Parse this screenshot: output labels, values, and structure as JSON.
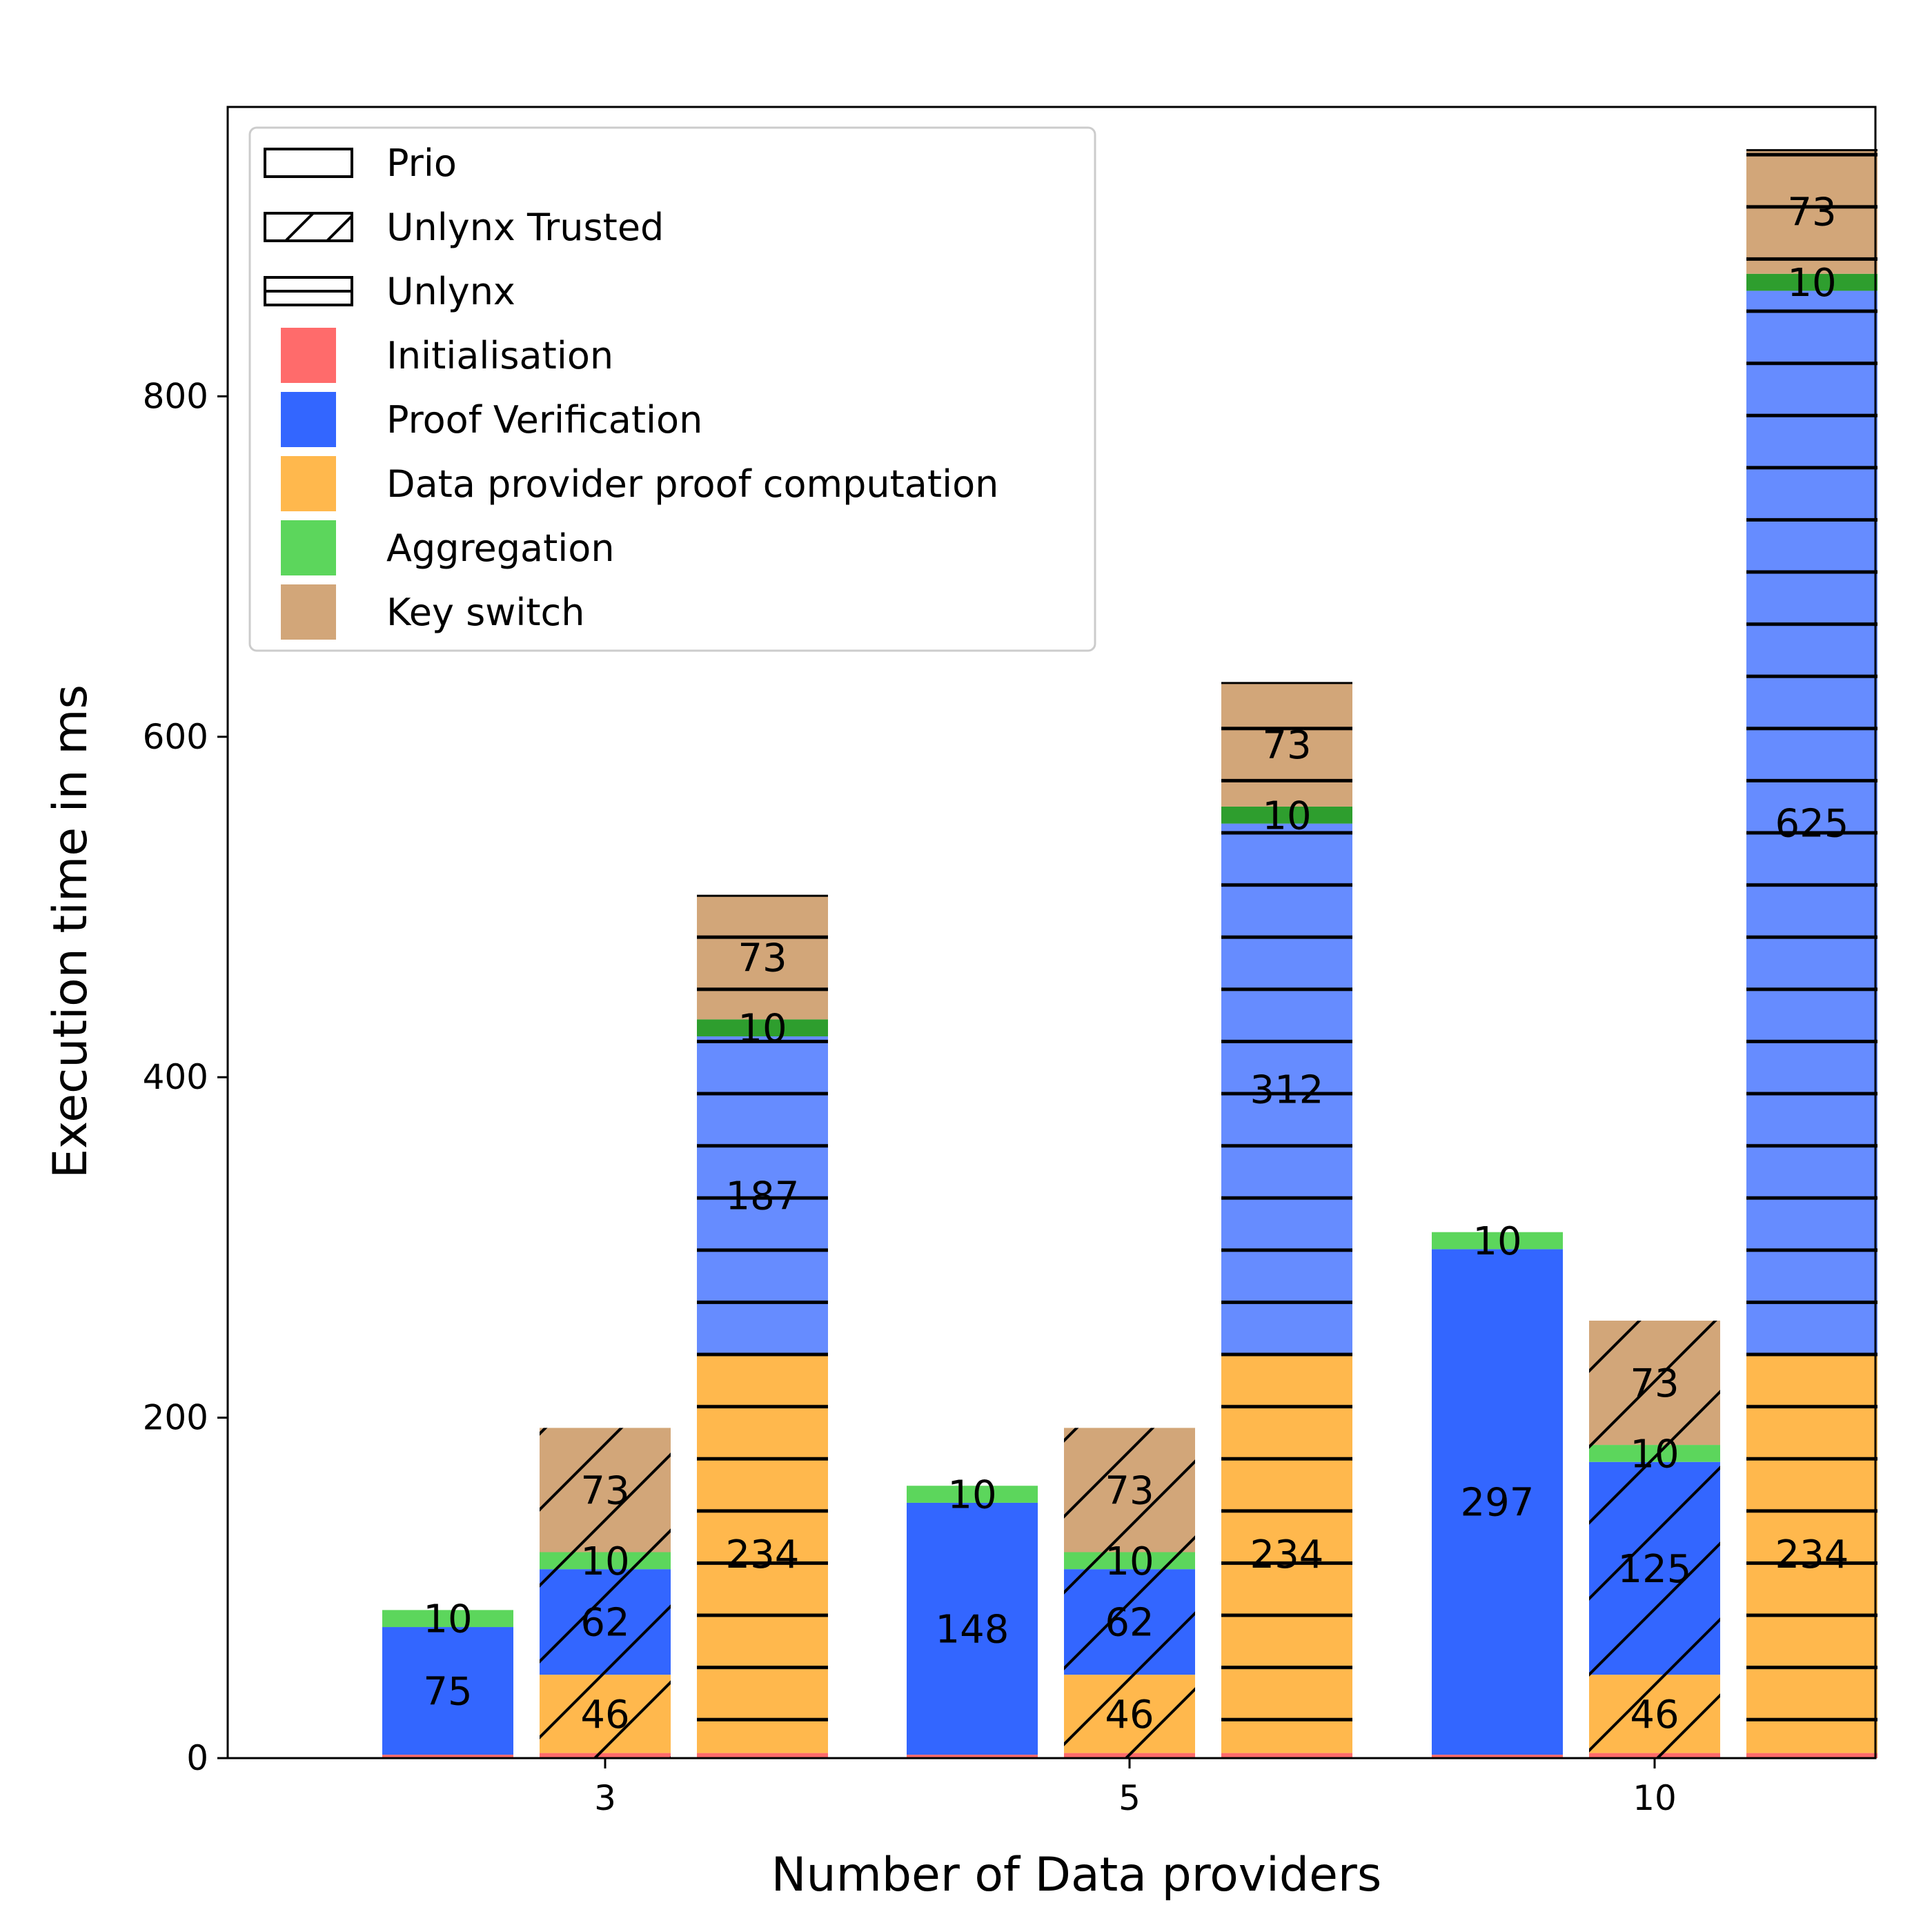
{
  "chart_data": {
    "type": "bar",
    "stacked": true,
    "grouped": true,
    "title": "",
    "xlabel": "Number of Data providers",
    "ylabel": "Execution time in ms",
    "ylim": [
      0,
      970
    ],
    "yticks": [
      0,
      200,
      400,
      600,
      800
    ],
    "categories": [
      "3",
      "5",
      "10"
    ],
    "legend_position": "top-left",
    "systems": [
      {
        "name": "Prio",
        "pattern": "none"
      },
      {
        "name": "Unlynx Trusted",
        "pattern": "diagonal"
      },
      {
        "name": "Unlynx",
        "pattern": "horizontal"
      }
    ],
    "components": [
      {
        "name": "Initialisation",
        "color": "#ff6b6b"
      },
      {
        "name": "Proof Verification",
        "color": "#3366ff"
      },
      {
        "name": "Data provider proof computation",
        "color": "#ffb84d"
      },
      {
        "name": "Aggregation",
        "color": "#5cd65c"
      },
      {
        "name": "Key switch",
        "color": "#d2a679"
      }
    ],
    "bars": [
      {
        "category": "3",
        "system": "Prio",
        "segments": [
          {
            "component": "Initialisation",
            "value": 2,
            "label": ""
          },
          {
            "component": "Proof Verification",
            "value": 75,
            "label": "75"
          },
          {
            "component": "Aggregation",
            "value": 10,
            "label": "10"
          }
        ]
      },
      {
        "category": "3",
        "system": "Unlynx Trusted",
        "segments": [
          {
            "component": "Initialisation",
            "value": 3,
            "label": ""
          },
          {
            "component": "Data provider proof computation",
            "value": 46,
            "label": "46"
          },
          {
            "component": "Proof Verification",
            "value": 62,
            "label": "62"
          },
          {
            "component": "Aggregation",
            "value": 10,
            "label": "10"
          },
          {
            "component": "Key switch",
            "value": 73,
            "label": "73"
          }
        ]
      },
      {
        "category": "3",
        "system": "Unlynx",
        "segments": [
          {
            "component": "Initialisation",
            "value": 3,
            "label": ""
          },
          {
            "component": "Data provider proof computation",
            "value": 234,
            "label": "234"
          },
          {
            "component": "Proof Verification",
            "value": 187,
            "label": "187"
          },
          {
            "component": "Aggregation",
            "value": 10,
            "label": "10"
          },
          {
            "component": "Key switch",
            "value": 73,
            "label": "73"
          }
        ]
      },
      {
        "category": "5",
        "system": "Prio",
        "segments": [
          {
            "component": "Initialisation",
            "value": 2,
            "label": ""
          },
          {
            "component": "Proof Verification",
            "value": 148,
            "label": "148"
          },
          {
            "component": "Aggregation",
            "value": 10,
            "label": "10"
          }
        ]
      },
      {
        "category": "5",
        "system": "Unlynx Trusted",
        "segments": [
          {
            "component": "Initialisation",
            "value": 3,
            "label": ""
          },
          {
            "component": "Data provider proof computation",
            "value": 46,
            "label": "46"
          },
          {
            "component": "Proof Verification",
            "value": 62,
            "label": "62"
          },
          {
            "component": "Aggregation",
            "value": 10,
            "label": "10"
          },
          {
            "component": "Key switch",
            "value": 73,
            "label": "73"
          }
        ]
      },
      {
        "category": "5",
        "system": "Unlynx",
        "segments": [
          {
            "component": "Initialisation",
            "value": 3,
            "label": ""
          },
          {
            "component": "Data provider proof computation",
            "value": 234,
            "label": "234"
          },
          {
            "component": "Proof Verification",
            "value": 312,
            "label": "312"
          },
          {
            "component": "Aggregation",
            "value": 10,
            "label": "10"
          },
          {
            "component": "Key switch",
            "value": 73,
            "label": "73"
          }
        ]
      },
      {
        "category": "10",
        "system": "Prio",
        "segments": [
          {
            "component": "Initialisation",
            "value": 2,
            "label": ""
          },
          {
            "component": "Proof Verification",
            "value": 297,
            "label": "297"
          },
          {
            "component": "Aggregation",
            "value": 10,
            "label": "10"
          }
        ]
      },
      {
        "category": "10",
        "system": "Unlynx Trusted",
        "segments": [
          {
            "component": "Initialisation",
            "value": 3,
            "label": ""
          },
          {
            "component": "Data provider proof computation",
            "value": 46,
            "label": "46"
          },
          {
            "component": "Proof Verification",
            "value": 125,
            "label": "125"
          },
          {
            "component": "Aggregation",
            "value": 10,
            "label": "10"
          },
          {
            "component": "Key switch",
            "value": 73,
            "label": "73"
          }
        ]
      },
      {
        "category": "10",
        "system": "Unlynx",
        "segments": [
          {
            "component": "Initialisation",
            "value": 3,
            "label": ""
          },
          {
            "component": "Data provider proof computation",
            "value": 234,
            "label": "234"
          },
          {
            "component": "Proof Verification",
            "value": 625,
            "label": "625"
          },
          {
            "component": "Aggregation",
            "value": 10,
            "label": "10"
          },
          {
            "component": "Key switch",
            "value": 73,
            "label": "73"
          }
        ]
      }
    ]
  }
}
